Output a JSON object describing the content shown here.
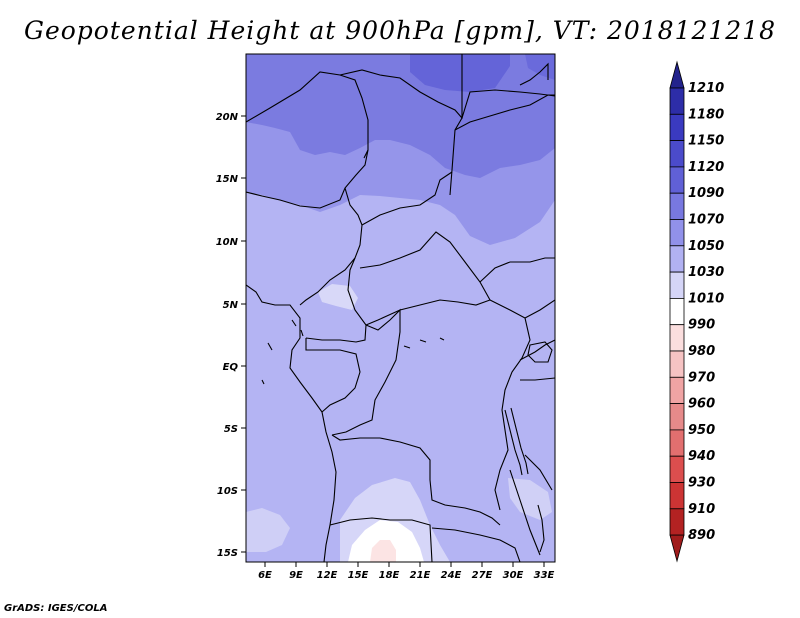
{
  "title": "Geopotential Height at 900hPa [gpm], VT: 2018121218",
  "credit": "GrADS: IGES/COLA",
  "map": {
    "lat_labels": [
      "20N",
      "15N",
      "10N",
      "5N",
      "EQ",
      "5S",
      "10S",
      "15S"
    ],
    "lon_labels": [
      "6E",
      "9E",
      "12E",
      "15E",
      "18E",
      "21E",
      "24E",
      "27E",
      "30E",
      "33E"
    ]
  },
  "colorbar": {
    "labels": [
      "1210",
      "1180",
      "1150",
      "1120",
      "1090",
      "1070",
      "1050",
      "1030",
      "1010",
      "990",
      "980",
      "970",
      "960",
      "950",
      "940",
      "930",
      "910",
      "890"
    ],
    "colors": [
      "#23238c",
      "#2d2da8",
      "#3a3ac0",
      "#4b4bcb",
      "#6060d6",
      "#7878e0",
      "#9191ea",
      "#b1b1f2",
      "#d5d5f7",
      "#ffffff",
      "#fbdede",
      "#f6c3c3",
      "#f0a4a4",
      "#e68a8a",
      "#e26f6f",
      "#dc4e4e",
      "#cc3434",
      "#b32222",
      "#a01c1c"
    ]
  }
}
